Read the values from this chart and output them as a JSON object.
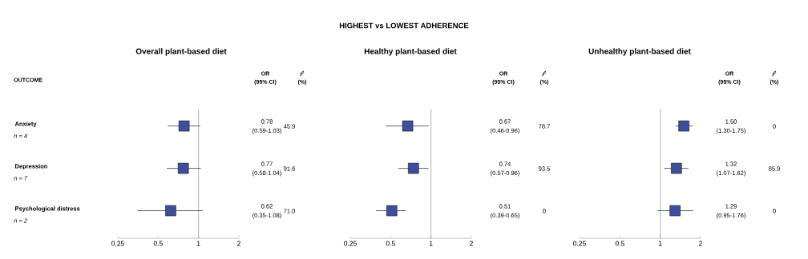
{
  "chart_data": [
    {
      "type": "scatter",
      "title": "Overall plant-based diet",
      "orientation": "horizontal",
      "log": "x",
      "marker": "square",
      "color": "#3f4e9a",
      "categories": [
        "Anxiety",
        "Depression",
        "Psychological distress"
      ],
      "values": [
        0.78,
        0.77,
        0.62
      ],
      "errors": [
        [
          0.59,
          1.03
        ],
        [
          0.58,
          1.04
        ],
        [
          0.35,
          1.08
        ]
      ],
      "value_labels": [
        "0.78",
        "0.77",
        "0.62"
      ],
      "xlim": [
        0.25,
        2
      ],
      "xticks": [
        0.25,
        0.5,
        1,
        2
      ],
      "ref_lines": [
        {
          "axis": "x",
          "value": 1
        }
      ],
      "annotations": [
        "OR",
        "(95% CI)",
        "I$^{2}$",
        "(%)",
        "(0.59-1.03)",
        "45.9",
        "(0.58-1.04)",
        "91.6",
        "(0.35-1.08)",
        "71.0",
        "OUTCOME",
        "n = 4",
        "n = 7",
        "n = 2"
      ]
    },
    {
      "type": "scatter",
      "title": "HIGHEST vs LOWEST ADHERENCE",
      "subtitle": "Healthy plant-based diet",
      "orientation": "horizontal",
      "log": "x",
      "marker": "square",
      "color": "#3f4e9a",
      "categories": [
        null,
        null,
        null
      ],
      "values": [
        0.67,
        0.74,
        0.51
      ],
      "errors": [
        [
          0.46,
          0.96
        ],
        [
          0.57,
          0.96
        ],
        [
          0.39,
          0.65
        ]
      ],
      "value_labels": [
        "0.67",
        "0.74",
        "0.51"
      ],
      "xlim": [
        0.25,
        2
      ],
      "xticks": [
        0.25,
        0.5,
        1,
        2
      ],
      "ref_lines": [
        {
          "axis": "x",
          "value": 1
        }
      ],
      "annotations": [
        "OR",
        "(95% CI)",
        "I$^{2}$",
        "(%)",
        "(0.46-0.96)",
        "78.7",
        "(0.57-0.96)",
        "93.5",
        "(0.39-0.65)",
        "0"
      ]
    },
    {
      "type": "scatter",
      "title": "Unhealthy plant-based diet",
      "orientation": "horizontal",
      "log": "x",
      "marker": "square",
      "color": "#3f4e9a",
      "categories": [
        null,
        null,
        null
      ],
      "values": [
        1.5,
        1.32,
        1.29
      ],
      "errors": [
        [
          1.3,
          1.75
        ],
        [
          1.07,
          1.62
        ],
        [
          0.95,
          1.76
        ]
      ],
      "value_labels": [
        "1.50",
        "1.32",
        "1.29"
      ],
      "xlim": [
        0.25,
        2
      ],
      "xticks": [
        0.25,
        0.5,
        1,
        2
      ],
      "ref_lines": [
        {
          "axis": "x",
          "value": 1
        }
      ],
      "annotations": [
        "OR",
        "(95% CI)",
        "I$^{2}$",
        "(%)",
        "(1.30-1.75)",
        "0",
        "(1.07-1.62)",
        "85.9",
        "(0.95-1.76)",
        "0"
      ]
    }
  ]
}
